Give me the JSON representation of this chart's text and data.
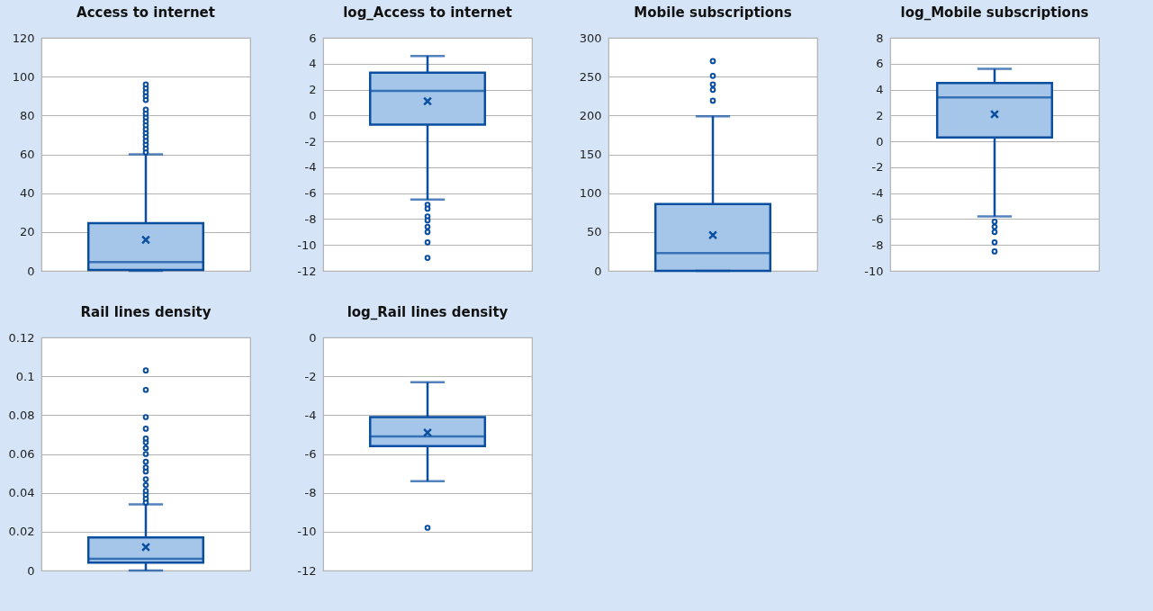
{
  "chart_data": [
    {
      "type": "box",
      "title": "Access to internet",
      "categories": [
        null
      ],
      "ylim": [
        0,
        120
      ],
      "yticks": [
        0,
        20,
        40,
        60,
        80,
        100,
        120
      ],
      "grid": "y",
      "series": [
        {
          "color": "#a5c6e9",
          "boxes": [
            {
              "low": 0,
              "q1": 0.5,
              "median": 4.5,
              "q3": 24.5,
              "high": 60,
              "mean": 16,
              "outliers": [
                61,
                63,
                65,
                67,
                69,
                71,
                73,
                75,
                77,
                79,
                81,
                83,
                88,
                90,
                92,
                94,
                96
              ]
            }
          ]
        }
      ]
    },
    {
      "type": "box",
      "title": "log_Access to internet",
      "categories": [
        null
      ],
      "ylim": [
        -12,
        6
      ],
      "yticks": [
        -12,
        -10,
        -8,
        -6,
        -4,
        -2,
        0,
        2,
        4,
        6
      ],
      "grid": "y",
      "series": [
        {
          "color": "#a5c6e9",
          "boxes": [
            {
              "low": -6.5,
              "q1": -0.7,
              "median": 1.9,
              "q3": 3.3,
              "high": 4.6,
              "mean": 1.1,
              "outliers": [
                -6.9,
                -7.2,
                -7.8,
                -8.1,
                -8.6,
                -9.0,
                -9.8,
                -11.0
              ]
            }
          ]
        }
      ]
    },
    {
      "type": "box",
      "title": "Mobile subscriptions",
      "categories": [
        null
      ],
      "ylim": [
        0,
        300
      ],
      "yticks": [
        0,
        50,
        100,
        150,
        200,
        250,
        300
      ],
      "grid": "y",
      "series": [
        {
          "color": "#a5c6e9",
          "boxes": [
            {
              "low": 0,
              "q1": 0,
              "median": 23,
              "q3": 86,
              "high": 199,
              "mean": 46,
              "outliers": [
                219,
                233,
                240,
                251,
                270
              ]
            }
          ]
        }
      ]
    },
    {
      "type": "box",
      "title": "log_Mobile subscriptions",
      "categories": [
        null
      ],
      "ylim": [
        -10,
        8
      ],
      "yticks": [
        -10,
        -8,
        -6,
        -4,
        -2,
        0,
        2,
        4,
        6,
        8
      ],
      "grid": "y",
      "series": [
        {
          "color": "#a5c6e9",
          "boxes": [
            {
              "low": -5.8,
              "q1": 0.3,
              "median": 3.4,
              "q3": 4.5,
              "high": 5.6,
              "mean": 2.1,
              "outliers": [
                -6.2,
                -6.6,
                -7.0,
                -7.8,
                -8.5
              ]
            }
          ]
        }
      ]
    },
    {
      "type": "box",
      "title": "Rail lines density",
      "categories": [
        null
      ],
      "ylim": [
        0,
        0.12
      ],
      "yticks": [
        0,
        0.02,
        0.04,
        0.06,
        0.08,
        0.1,
        0.12
      ],
      "grid": "y",
      "series": [
        {
          "color": "#a5c6e9",
          "boxes": [
            {
              "low": 0,
              "q1": 0.004,
              "median": 0.006,
              "q3": 0.017,
              "high": 0.034,
              "mean": 0.012,
              "outliers": [
                0.035,
                0.037,
                0.039,
                0.041,
                0.044,
                0.047,
                0.051,
                0.053,
                0.056,
                0.06,
                0.063,
                0.066,
                0.068,
                0.073,
                0.079,
                0.093,
                0.103
              ]
            }
          ]
        }
      ]
    },
    {
      "type": "box",
      "title": "log_Rail lines density",
      "categories": [
        null
      ],
      "ylim": [
        -12,
        0
      ],
      "yticks": [
        -12,
        -10,
        -8,
        -6,
        -4,
        -2,
        0
      ],
      "grid": "y",
      "series": [
        {
          "color": "#a5c6e9",
          "boxes": [
            {
              "low": -7.4,
              "q1": -5.6,
              "median": -5.1,
              "q3": -4.1,
              "high": -2.3,
              "mean": -4.9,
              "outliers": [
                -9.8
              ]
            }
          ]
        }
      ]
    }
  ]
}
